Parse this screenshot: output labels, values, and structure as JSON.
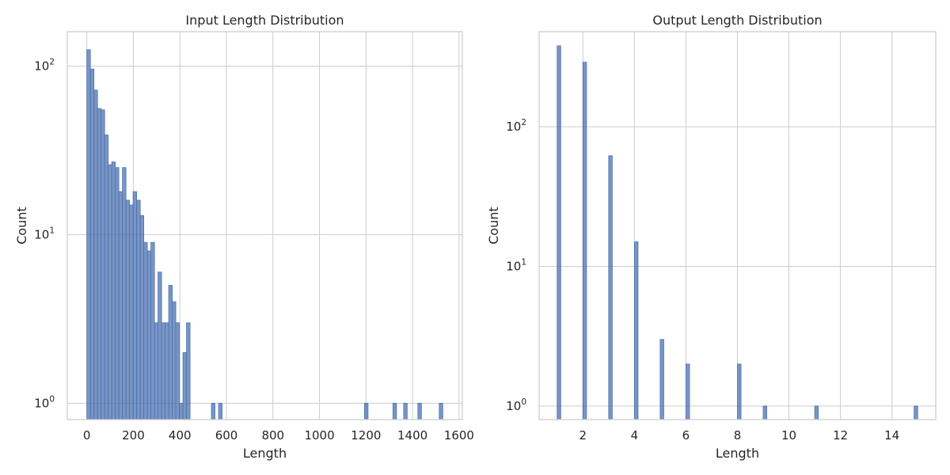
{
  "chart_data": [
    {
      "type": "bar",
      "title": "Input Length Distribution",
      "xlabel": "Length",
      "ylabel": "Count",
      "yscale": "log",
      "grid": true,
      "xlim": [
        -84,
        1614
      ],
      "ylim": [
        0.8,
        160
      ],
      "xticks": [
        0,
        200,
        400,
        600,
        800,
        1000,
        1200,
        1400,
        1600
      ],
      "yticks": [
        {
          "value": 1,
          "base": "10",
          "exp": "0"
        },
        {
          "value": 10,
          "base": "10",
          "exp": "1"
        },
        {
          "value": 100,
          "base": "10",
          "exp": "2"
        }
      ],
      "bin_width": 15.3,
      "bins": [
        {
          "start": 0,
          "count": 125
        },
        {
          "start": 15.3,
          "count": 96
        },
        {
          "start": 30.6,
          "count": 72
        },
        {
          "start": 45.9,
          "count": 56
        },
        {
          "start": 61.2,
          "count": 55
        },
        {
          "start": 76.5,
          "count": 39
        },
        {
          "start": 91.8,
          "count": 26
        },
        {
          "start": 107.1,
          "count": 27
        },
        {
          "start": 122.4,
          "count": 25
        },
        {
          "start": 137.7,
          "count": 18
        },
        {
          "start": 153,
          "count": 25
        },
        {
          "start": 168.3,
          "count": 16
        },
        {
          "start": 183.6,
          "count": 15
        },
        {
          "start": 198.9,
          "count": 18
        },
        {
          "start": 214.2,
          "count": 16
        },
        {
          "start": 229.5,
          "count": 13
        },
        {
          "start": 244.8,
          "count": 9
        },
        {
          "start": 260.1,
          "count": 8
        },
        {
          "start": 275.4,
          "count": 9
        },
        {
          "start": 290.7,
          "count": 3
        },
        {
          "start": 306,
          "count": 6
        },
        {
          "start": 321.3,
          "count": 3
        },
        {
          "start": 336.6,
          "count": 3
        },
        {
          "start": 351.9,
          "count": 5
        },
        {
          "start": 367.2,
          "count": 4
        },
        {
          "start": 382.5,
          "count": 3
        },
        {
          "start": 397.8,
          "count": 1
        },
        {
          "start": 413.1,
          "count": 2
        },
        {
          "start": 428.4,
          "count": 3
        },
        {
          "start": 535.5,
          "count": 1
        },
        {
          "start": 566.1,
          "count": 1
        },
        {
          "start": 1193.4,
          "count": 1
        },
        {
          "start": 1315.8,
          "count": 1
        },
        {
          "start": 1361.7,
          "count": 1
        },
        {
          "start": 1422.9,
          "count": 1
        },
        {
          "start": 1514.7,
          "count": 1
        }
      ]
    },
    {
      "type": "bar",
      "title": "Output Length Distribution",
      "xlabel": "Length",
      "ylabel": "Count",
      "yscale": "log",
      "grid": true,
      "xlim": [
        0.3,
        15.7
      ],
      "ylim": [
        0.8,
        480
      ],
      "xticks": [
        2,
        4,
        6,
        8,
        10,
        12,
        14
      ],
      "yticks": [
        {
          "value": 1,
          "base": "10",
          "exp": "0"
        },
        {
          "value": 10,
          "base": "10",
          "exp": "1"
        },
        {
          "value": 100,
          "base": "10",
          "exp": "2"
        }
      ],
      "bin_width": 0.14,
      "bins": [
        {
          "start": 1,
          "count": 380
        },
        {
          "start": 2,
          "count": 290
        },
        {
          "start": 3,
          "count": 62
        },
        {
          "start": 4,
          "count": 15
        },
        {
          "start": 5,
          "count": 3
        },
        {
          "start": 6,
          "count": 2
        },
        {
          "start": 8,
          "count": 2
        },
        {
          "start": 9,
          "count": 1
        },
        {
          "start": 11,
          "count": 1
        },
        {
          "start": 14.86,
          "count": 1
        }
      ]
    }
  ]
}
